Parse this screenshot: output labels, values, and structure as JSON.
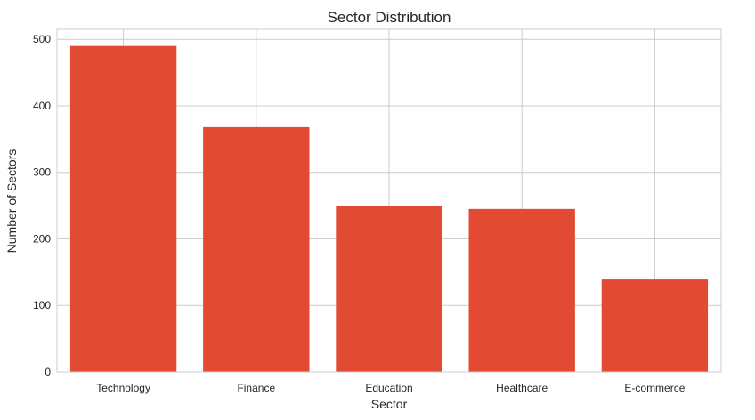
{
  "chart_data": {
    "type": "bar",
    "title": "Sector Distribution",
    "xlabel": "Sector",
    "ylabel": "Number of Sectors",
    "categories": [
      "Technology",
      "Finance",
      "Education",
      "Healthcare",
      "E-commerce"
    ],
    "values": [
      490,
      368,
      249,
      245,
      139
    ],
    "ylim": [
      0,
      515
    ],
    "yticks": [
      0,
      100,
      200,
      300,
      400,
      500
    ],
    "bar_color": "#e24a33",
    "grid": true,
    "legend": "none"
  }
}
